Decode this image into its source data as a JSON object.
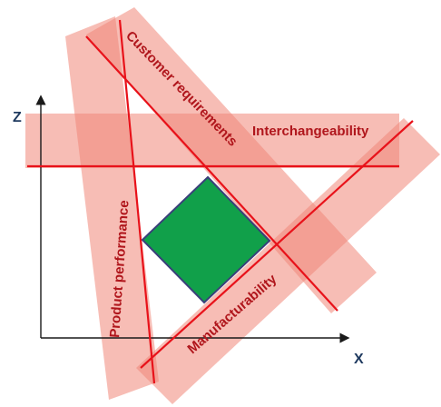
{
  "diagram": {
    "axes": {
      "z_label": "Z",
      "x_label": "X"
    },
    "constraints": [
      {
        "id": "customer",
        "label": "Customer requirements"
      },
      {
        "id": "interchangeability",
        "label": "Interchangeability"
      },
      {
        "id": "product",
        "label": "Product performance"
      },
      {
        "id": "manufacturability",
        "label": "Manufacturability"
      }
    ],
    "colors": {
      "band": "#f08778",
      "line": "#e8121a",
      "label": "#b0161c",
      "feasible_region": "#11a04a",
      "feasible_border": "#3a3f7a",
      "axis": "#1a1a1a",
      "axis_label": "#1f3a5f"
    }
  }
}
